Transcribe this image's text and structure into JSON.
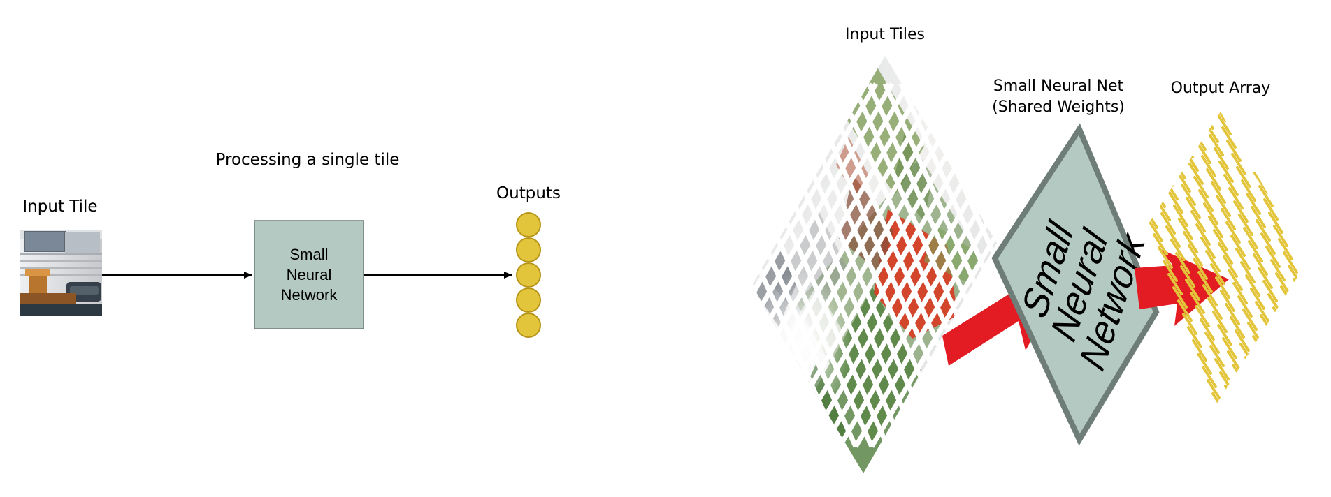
{
  "left": {
    "title": "Processing a single tile",
    "input_label": "Input Tile",
    "network_lines": [
      "Small",
      "Neural",
      "Network"
    ],
    "outputs_label": "Outputs",
    "output_count": 5
  },
  "right": {
    "tiles_label": "Input Tiles",
    "net_label_line1": "Small Neural Net",
    "net_label_line2": "(Shared Weights)",
    "array_label": "Output Array",
    "network_lines": [
      "Small",
      "Neural",
      "Network"
    ]
  },
  "colors": {
    "network_fill": "#b3c9c1",
    "network_stroke": "#6f7d78",
    "output_fill": "#e3c53b",
    "output_stroke": "#b69418",
    "arrow_red": "#e31b23"
  }
}
